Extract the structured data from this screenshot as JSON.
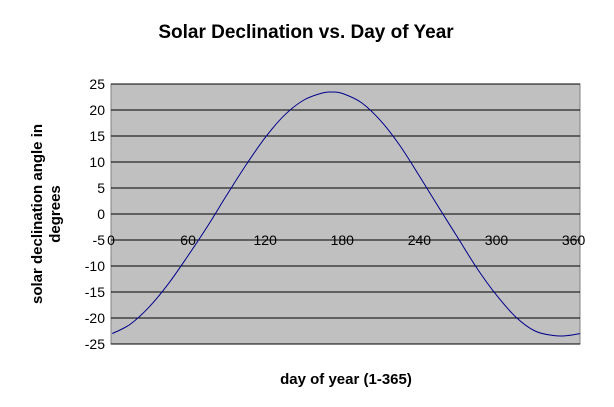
{
  "chart_data": {
    "type": "line",
    "title": "Solar Declination vs. Day of Year",
    "xlabel": "day of year (1-365)",
    "ylabel_lines": [
      "solar declination angle in",
      "degrees"
    ],
    "xlim": [
      0,
      365
    ],
    "ylim": [
      -25,
      25
    ],
    "x_ticks": [
      0,
      60,
      120,
      180,
      240,
      300,
      360
    ],
    "y_ticks": [
      25,
      20,
      15,
      10,
      5,
      0,
      -5,
      -10,
      -15,
      -20,
      -25
    ],
    "grid": true,
    "legend": "none",
    "colors": {
      "plot_background": "#c0c0c0",
      "line": "#00008b",
      "gridline": "#000000",
      "page": "#ffffff"
    },
    "series": [
      {
        "x": [
          1,
          15,
          30,
          45,
          60,
          75,
          90,
          105,
          120,
          135,
          150,
          165,
          172,
          180,
          195,
          210,
          225,
          240,
          255,
          270,
          285,
          300,
          315,
          330,
          345,
          355,
          365
        ],
        "y": [
          -23.0,
          -21.2,
          -17.8,
          -13.3,
          -8.0,
          -2.4,
          3.6,
          9.4,
          14.7,
          19.0,
          21.9,
          23.3,
          23.45,
          23.2,
          21.4,
          17.9,
          13.1,
          7.3,
          1.3,
          -4.6,
          -10.5,
          -15.6,
          -19.8,
          -22.5,
          -23.4,
          -23.4,
          -23.0
        ]
      }
    ]
  }
}
